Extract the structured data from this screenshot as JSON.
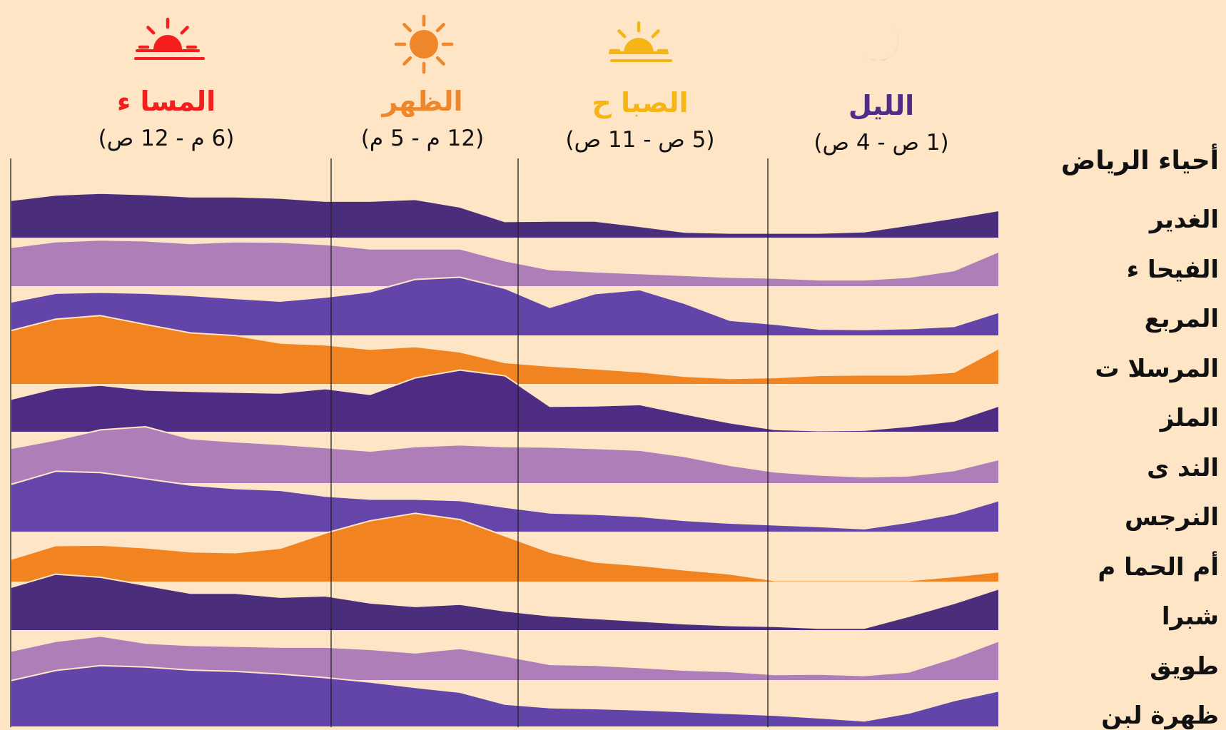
{
  "chart_data": {
    "type": "area",
    "legend_title": "أحياء الرياض",
    "periods": [
      {
        "name": "المسا ء",
        "range": "(6 م - 12 ص)",
        "color": "#f41e1e",
        "icon": "sunset-icon"
      },
      {
        "name": "الظهر",
        "range": "(12 م - 5 م)",
        "color": "#f0862a",
        "icon": "sun-icon"
      },
      {
        "name": "الصبا ح",
        "range": "(5 ص - 11 ص)",
        "color": "#f6b516",
        "icon": "sunrise-icon"
      },
      {
        "name": "الليل",
        "range": "(1 ص - 4 ص)",
        "color": "#4f2c85",
        "icon": "moon-icon"
      }
    ],
    "series": [
      {
        "name": "الغدير",
        "color": "#4a2e7c",
        "values": [
          0.86,
          0.98,
          1.02,
          0.99,
          0.94,
          0.94,
          0.91,
          0.84,
          0.84,
          0.88,
          0.71,
          0.38,
          0.39,
          0.39,
          0.27,
          0.14,
          0.12,
          0.12,
          0.12,
          0.15,
          0.3,
          0.46,
          0.63
        ]
      },
      {
        "name": "الفيحا ء",
        "color": "#ae7eb9",
        "values": [
          0.89,
          1.02,
          1.06,
          1.04,
          0.98,
          1.02,
          1.01,
          0.96,
          0.86,
          0.86,
          0.86,
          0.59,
          0.39,
          0.34,
          0.3,
          0.26,
          0.22,
          0.2,
          0.16,
          0.16,
          0.22,
          0.37,
          0.8
        ]
      },
      {
        "name": "المربع",
        "color": "#6344a9",
        "values": [
          0.77,
          0.97,
          0.99,
          0.97,
          0.92,
          0.85,
          0.79,
          0.88,
          1.0,
          1.28,
          1.33,
          1.08,
          0.65,
          0.96,
          1.05,
          0.74,
          0.36,
          0.27,
          0.16,
          0.15,
          0.17,
          0.22,
          0.54
        ]
      },
      {
        "name": "المرسلا ت",
        "color": "#f18420",
        "values": [
          1.22,
          1.48,
          1.56,
          1.36,
          1.17,
          1.11,
          0.94,
          0.9,
          0.8,
          0.86,
          0.74,
          0.5,
          0.42,
          0.36,
          0.29,
          0.19,
          0.14,
          0.16,
          0.21,
          0.22,
          0.22,
          0.28,
          0.82
        ]
      },
      {
        "name": "الملز",
        "color": "#4f2c83",
        "values": [
          0.75,
          1.0,
          1.07,
          0.96,
          0.93,
          0.91,
          0.89,
          0.99,
          0.86,
          1.23,
          1.41,
          1.28,
          0.59,
          0.6,
          0.63,
          0.42,
          0.22,
          0.07,
          0.04,
          0.05,
          0.14,
          0.26,
          0.6
        ]
      },
      {
        "name": "الند ى",
        "color": "#ae7eb9",
        "values": [
          0.8,
          0.99,
          1.22,
          1.29,
          1.02,
          0.95,
          0.89,
          0.82,
          0.74,
          0.84,
          0.88,
          0.84,
          0.83,
          0.8,
          0.76,
          0.62,
          0.42,
          0.27,
          0.2,
          0.16,
          0.18,
          0.3,
          0.55
        ]
      },
      {
        "name": "النرجس",
        "color": "#6545a9",
        "values": [
          1.08,
          1.38,
          1.35,
          1.21,
          1.07,
          0.99,
          0.95,
          0.82,
          0.75,
          0.75,
          0.72,
          0.57,
          0.44,
          0.41,
          0.36,
          0.27,
          0.21,
          0.17,
          0.13,
          0.08,
          0.23,
          0.42,
          0.72
        ]
      },
      {
        "name": "أم الحما م",
        "color": "#f18420",
        "values": [
          0.52,
          0.83,
          0.84,
          0.78,
          0.69,
          0.67,
          0.77,
          1.11,
          1.39,
          1.56,
          1.42,
          1.05,
          0.68,
          0.46,
          0.38,
          0.28,
          0.19,
          0.04,
          0.04,
          0.04,
          0.04,
          0.13,
          0.24
        ]
      },
      {
        "name": "شبرا",
        "color": "#4a2e7c",
        "values": [
          0.98,
          1.28,
          1.21,
          1.03,
          0.85,
          0.85,
          0.76,
          0.79,
          0.63,
          0.55,
          0.6,
          0.45,
          0.34,
          0.28,
          0.22,
          0.16,
          0.12,
          0.1,
          0.06,
          0.06,
          0.33,
          0.62,
          0.95
        ]
      },
      {
        "name": "طويق",
        "color": "#ae7eb9",
        "values": [
          0.67,
          0.89,
          1.01,
          0.85,
          0.8,
          0.78,
          0.76,
          0.76,
          0.71,
          0.63,
          0.73,
          0.56,
          0.37,
          0.35,
          0.3,
          0.24,
          0.21,
          0.14,
          0.15,
          0.12,
          0.2,
          0.52,
          0.9
        ]
      },
      {
        "name": "ظهرة لبن",
        "color": "#6344a9",
        "values": [
          1.05,
          1.28,
          1.39,
          1.36,
          1.29,
          1.26,
          1.2,
          1.12,
          1.02,
          0.9,
          0.79,
          0.52,
          0.44,
          0.42,
          0.39,
          0.35,
          0.31,
          0.27,
          0.21,
          0.14,
          0.32,
          0.6,
          0.82
        ]
      }
    ]
  }
}
